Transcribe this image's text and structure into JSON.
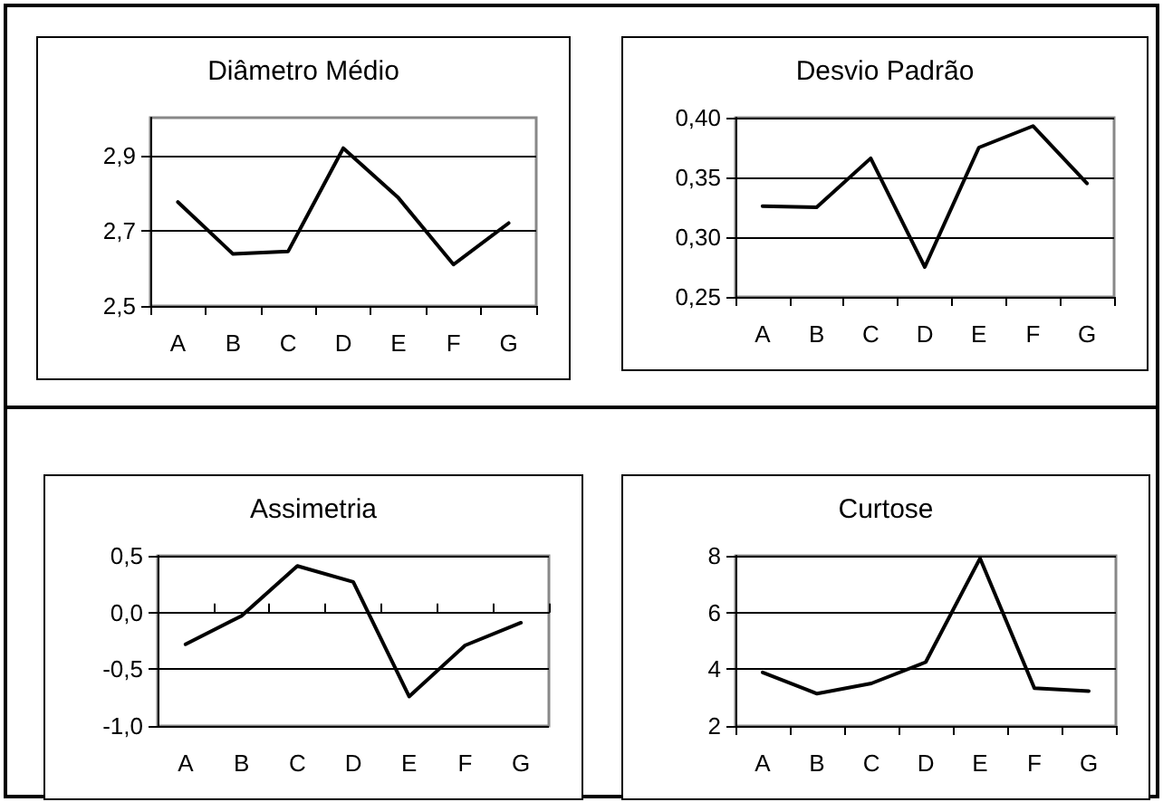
{
  "chart_data": [
    {
      "type": "line",
      "title": "Diâmetro Médio",
      "categories": [
        "A",
        "B",
        "C",
        "D",
        "E",
        "F",
        "G"
      ],
      "values": [
        2.776,
        2.638,
        2.645,
        2.919,
        2.787,
        2.61,
        2.72
      ],
      "color": "#000000",
      "ylim": [
        2.5,
        3.0
      ],
      "yticks": [
        {
          "value": 2.5,
          "label": "2,5"
        },
        {
          "value": 2.7,
          "label": "2,7"
        },
        {
          "value": 2.9,
          "label": "2,9"
        }
      ],
      "grid": "y",
      "marker": "none",
      "line_style": "solid"
    },
    {
      "type": "line",
      "title": "Desvio Padrão",
      "categories": [
        "A",
        "B",
        "C",
        "D",
        "E",
        "F",
        "G"
      ],
      "values": [
        0.326,
        0.325,
        0.366,
        0.275,
        0.375,
        0.393,
        0.345
      ],
      "color": "#000000",
      "ylim": [
        0.25,
        0.4
      ],
      "yticks": [
        {
          "value": 0.25,
          "label": "0,25"
        },
        {
          "value": 0.3,
          "label": "0,30"
        },
        {
          "value": 0.35,
          "label": "0,35"
        },
        {
          "value": 0.4,
          "label": "0,40"
        }
      ],
      "grid": "y",
      "marker": "none",
      "line_style": "solid"
    },
    {
      "type": "line",
      "title": "Assimetria",
      "categories": [
        "A",
        "B",
        "C",
        "D",
        "E",
        "F",
        "G"
      ],
      "values": [
        -0.28,
        -0.03,
        0.41,
        0.27,
        -0.74,
        -0.29,
        -0.09
      ],
      "color": "#000000",
      "ylim": [
        -1.0,
        0.5
      ],
      "yticks": [
        {
          "value": -1.0,
          "label": "-1,0"
        },
        {
          "value": -0.5,
          "label": "-0,5"
        },
        {
          "value": 0,
          "label": "0,0"
        },
        {
          "value": 0.5,
          "label": "0,5"
        }
      ],
      "grid": "y",
      "marker": "none",
      "line_style": "solid"
    },
    {
      "type": "line",
      "title": "Curtose",
      "categories": [
        "A",
        "B",
        "C",
        "D",
        "E",
        "F",
        "G"
      ],
      "values": [
        3.89,
        3.14,
        3.5,
        4.25,
        7.91,
        3.33,
        3.23
      ],
      "color": "#000000",
      "ylim": [
        2,
        8
      ],
      "yticks": [
        2,
        4,
        6,
        8
      ],
      "grid": "y",
      "marker": "none",
      "line_style": "solid"
    }
  ]
}
